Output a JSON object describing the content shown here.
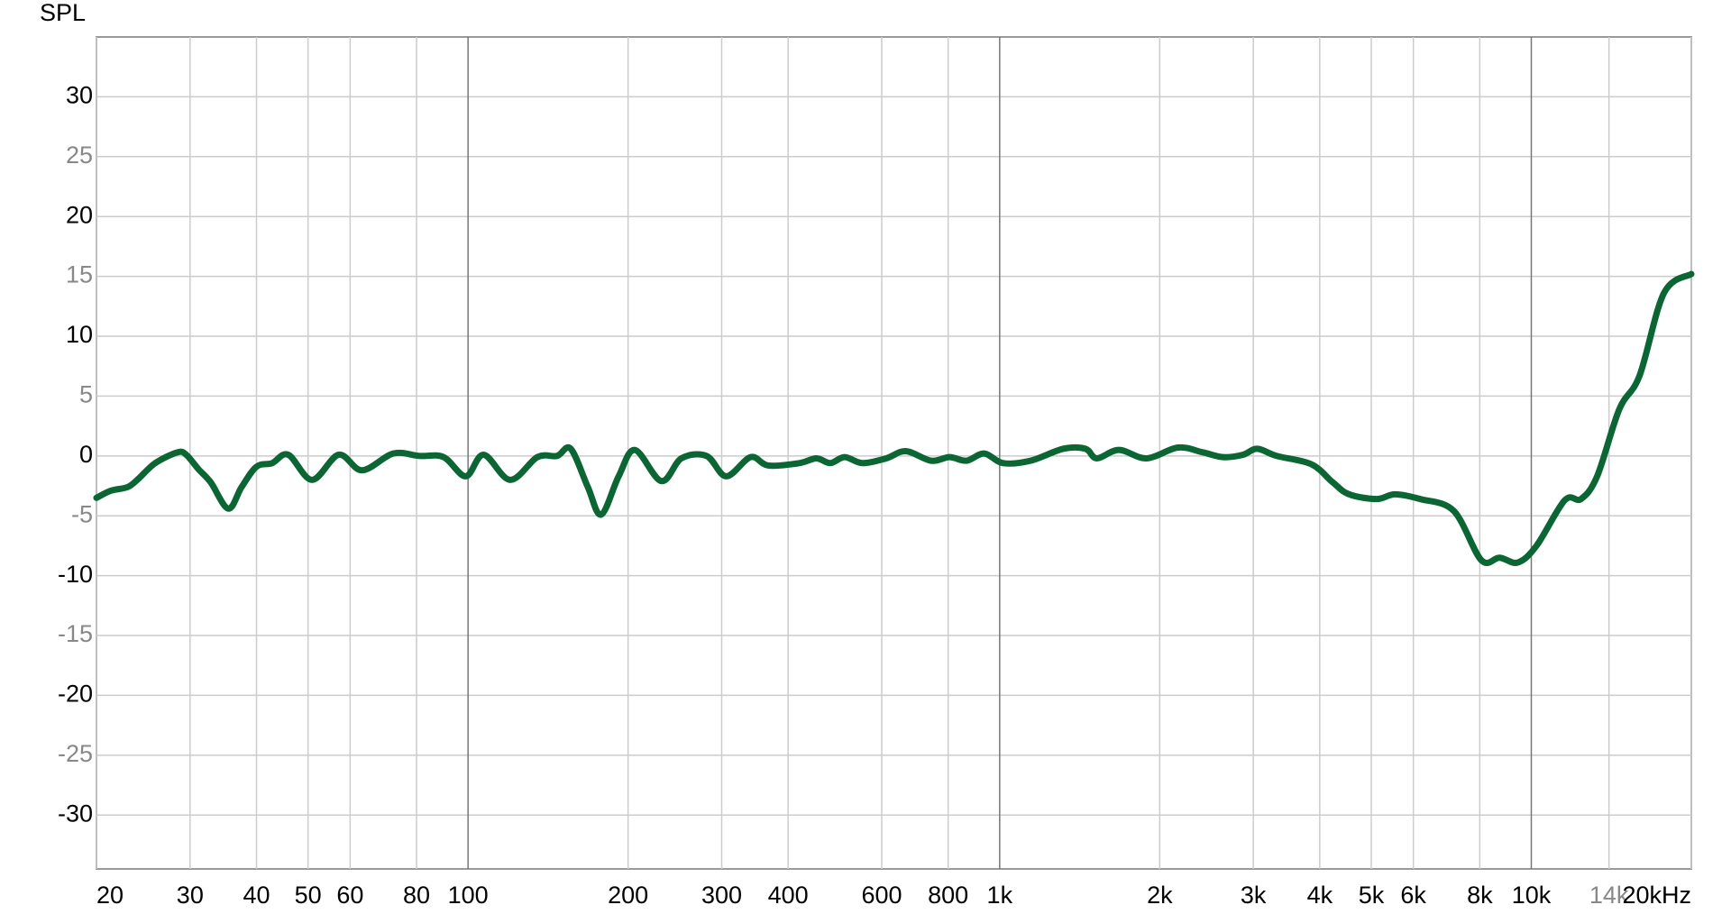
{
  "chart_data": {
    "type": "line",
    "y_label": "SPL",
    "x_log": true,
    "grid": true,
    "xlim": [
      20,
      20000
    ],
    "ylim": [
      -34.5,
      35
    ],
    "xticks": [
      20,
      30,
      40,
      50,
      60,
      80,
      100,
      200,
      300,
      400,
      600,
      800,
      {
        "value": 1000,
        "label": "1k"
      },
      {
        "value": 2000,
        "label": "2k"
      },
      {
        "value": 3000,
        "label": "3k"
      },
      {
        "value": 4000,
        "label": "4k"
      },
      {
        "value": 5000,
        "label": "5k"
      },
      {
        "value": 6000,
        "label": "6k"
      },
      {
        "value": 8000,
        "label": "8k"
      },
      {
        "value": 10000,
        "label": "10k"
      },
      {
        "value": 14000,
        "label": "14k"
      },
      {
        "value": 20000,
        "label": "20kHz"
      }
    ],
    "yticks": [
      -30,
      -25,
      -20,
      -15,
      -10,
      -5,
      0,
      5,
      10,
      15,
      20,
      25,
      30
    ],
    "x": [
      20,
      21.3,
      22.9,
      24.0,
      25.8,
      28.4,
      29.5,
      31.1,
      32.8,
      35.4,
      37.5,
      40,
      42.8,
      45.9,
      50.9,
      57.1,
      63.2,
      72.3,
      81,
      90,
      99,
      107,
      120,
      135,
      147,
      156,
      168,
      178,
      192,
      206,
      231,
      252,
      281,
      306,
      340,
      367,
      420,
      452,
      480,
      511,
      552,
      612,
      666,
      743,
      805,
      866,
      935,
      1015,
      1143,
      1318,
      1450,
      1523,
      1676,
      1890,
      2164,
      2410,
      2632,
      2870,
      3050,
      3320,
      3860,
      4230,
      4540,
      5120,
      5540,
      6180,
      7150,
      8050,
      8720,
      9430,
      10230,
      11560,
      12400,
      13300,
      14640,
      15980,
      17760,
      20000
    ],
    "series": [
      {
        "color": "#0b6634",
        "values": [
          -3.5,
          -2.9,
          -2.6,
          -1.9,
          -0.6,
          0.3,
          0.1,
          -1.1,
          -2.2,
          -4.4,
          -2.6,
          -0.9,
          -0.6,
          0.1,
          -2.0,
          0.1,
          -1.2,
          0.2,
          0,
          -0.1,
          -1.7,
          0.1,
          -2.0,
          -0.1,
          0,
          0.6,
          -2.6,
          -4.9,
          -1.7,
          0.5,
          -2.1,
          -0.2,
          0,
          -1.7,
          -0.1,
          -0.8,
          -0.6,
          -0.2,
          -0.6,
          -0.1,
          -0.6,
          -0.2,
          0.4,
          -0.4,
          -0.1,
          -0.4,
          0.2,
          -0.6,
          -0.4,
          0.6,
          0.6,
          -0.2,
          0.5,
          -0.2,
          0.7,
          0.3,
          -0.1,
          0.1,
          0.6,
          0,
          -0.7,
          -2.2,
          -3.2,
          -3.6,
          -3.2,
          -3.6,
          -4.6,
          -8.7,
          -8.5,
          -8.9,
          -7.5,
          -3.7,
          -3.6,
          -1.7,
          3.9,
          6.7,
          13.6,
          15.2
        ]
      }
    ]
  }
}
